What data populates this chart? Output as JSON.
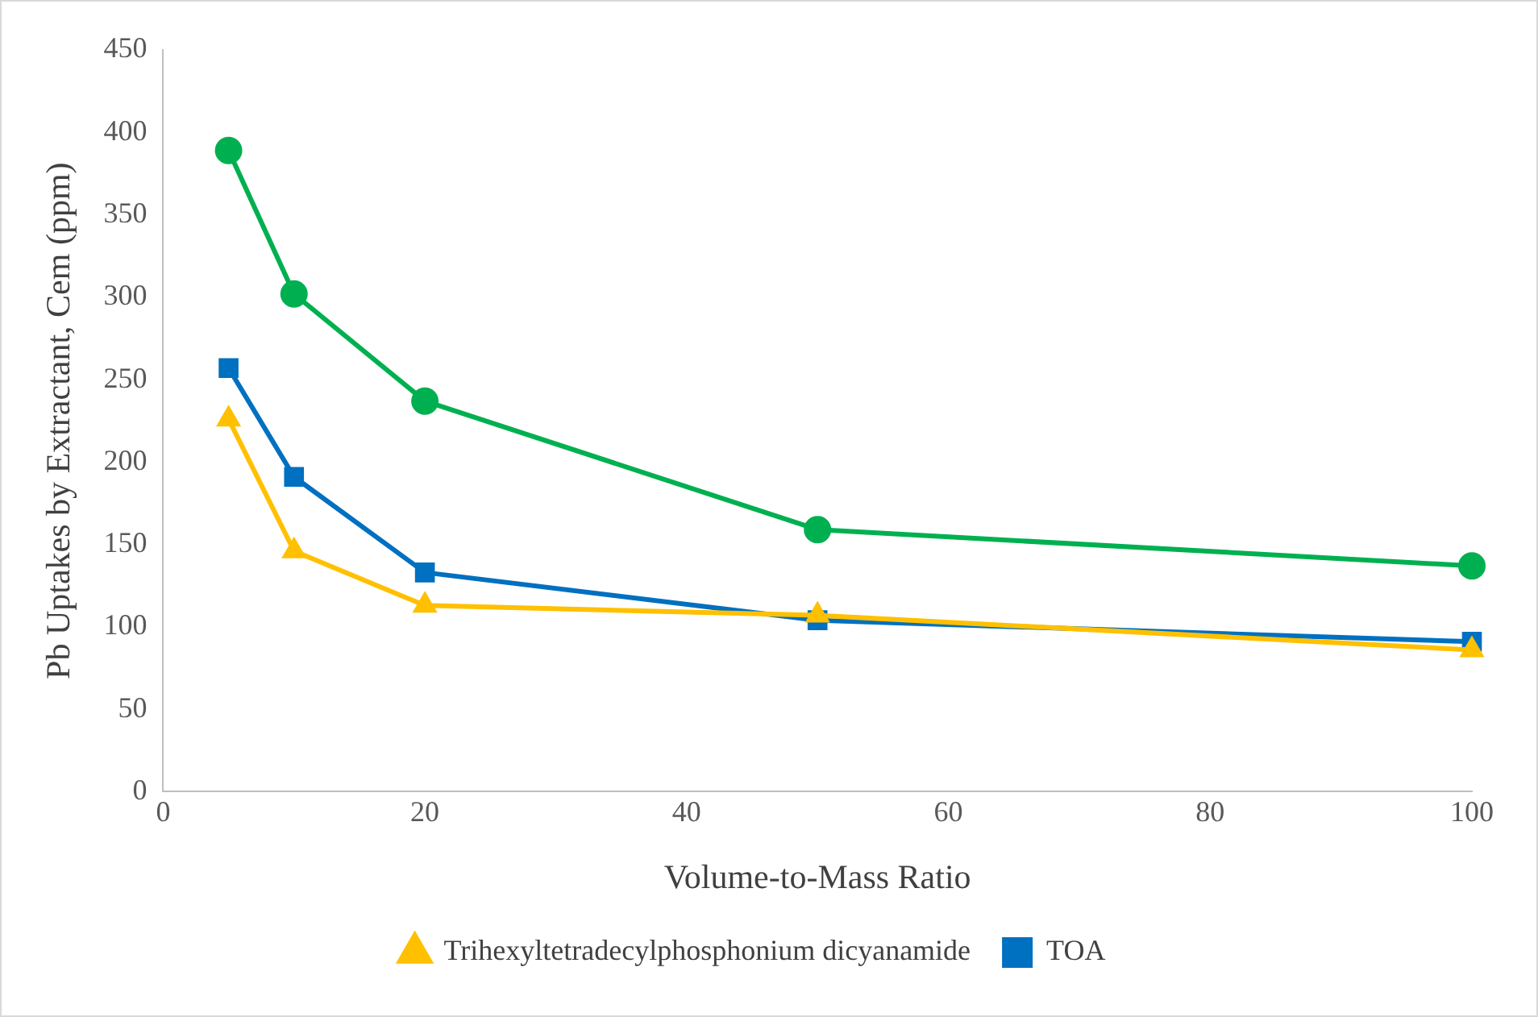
{
  "chart_data": {
    "type": "line",
    "xlabel": "Volume-to-Mass Ratio",
    "ylabel": "Pb Uptakes by Extractant, Cem (ppm)",
    "x": [
      5,
      10,
      20,
      50,
      100
    ],
    "series": [
      {
        "name": "TOA",
        "color": "#0070c0",
        "marker": "square",
        "values": [
          257,
          191,
          133,
          104,
          91
        ]
      },
      {
        "color": "#00b050",
        "marker": "circle",
        "values": [
          389,
          302,
          237,
          159,
          137
        ]
      },
      {
        "name": "Trihexyltetradecylphosphonium dicyanamide",
        "color": "#ffc000",
        "marker": "triangle",
        "values": [
          226,
          146,
          113,
          107,
          86
        ]
      }
    ],
    "xlim": [
      0,
      100
    ],
    "xticks": [
      0,
      20,
      40,
      60,
      80,
      100
    ],
    "ylim": [
      0,
      450
    ],
    "yticks": [
      0,
      50,
      100,
      150,
      200,
      250,
      300,
      350,
      400,
      450
    ],
    "grid": false,
    "legend": "bottom",
    "line_style": "solid"
  }
}
